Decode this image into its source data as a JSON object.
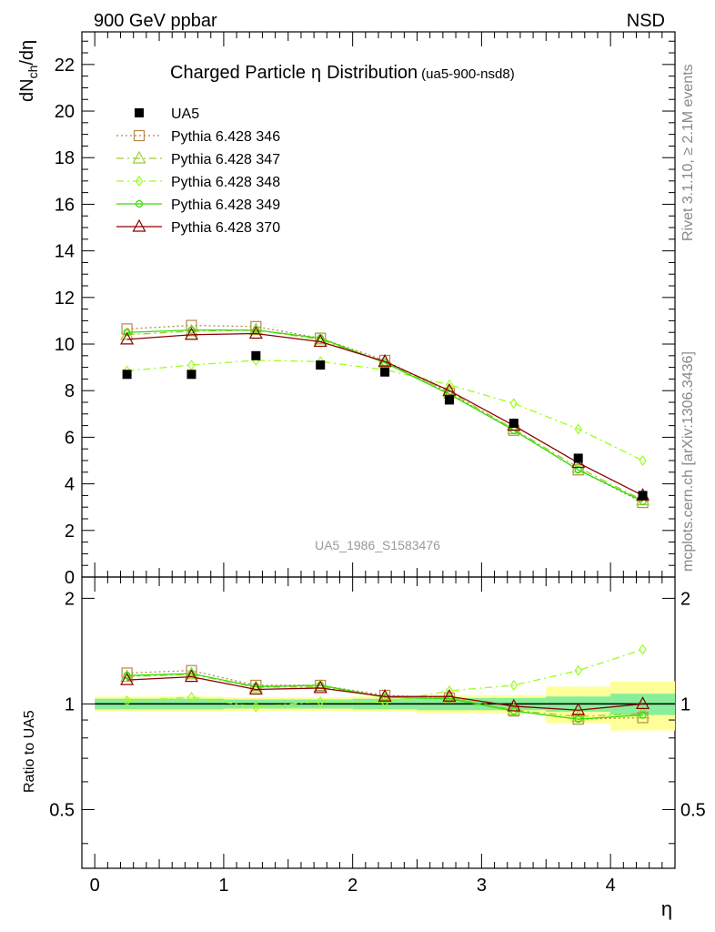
{
  "header": {
    "left": "900 GeV ppbar",
    "right": "NSD",
    "side_rivet": "Rivet 3.1.10, ≥ 2.1M events",
    "side_mcplots": "mcplots.cern.ch [arXiv:1306.3436]"
  },
  "chart_data": [
    {
      "type": "line",
      "title": "Charged Particle",
      "title_symbol": "η",
      "title_rest": "Distribution",
      "subtitle": "(ua5-900-nsd8)",
      "ylabel_main": "dN",
      "ylabel_sub": "ch",
      "ylabel_tail": "/dη",
      "watermark": "UA5_1986_S1583476",
      "xlim": [
        -0.1,
        4.5
      ],
      "ylim": [
        0,
        23.4
      ],
      "yticks": [
        "0",
        "2",
        "4",
        "6",
        "8",
        "10",
        "12",
        "14",
        "16",
        "18",
        "20",
        "22"
      ],
      "x": [
        0.25,
        0.75,
        1.25,
        1.75,
        2.25,
        2.75,
        3.25,
        3.75,
        4.25
      ],
      "data": {
        "name": "UA5",
        "color": "#000000",
        "values": [
          8.7,
          8.7,
          9.5,
          9.1,
          8.8,
          7.6,
          6.6,
          5.1,
          3.5
        ]
      },
      "series": [
        {
          "name": "Pythia 6.428 346",
          "color": "#b8864b",
          "dash": "2,3",
          "marker": "square",
          "values": [
            10.65,
            10.8,
            10.75,
            10.25,
            9.3,
            7.9,
            6.3,
            4.6,
            3.2
          ]
        },
        {
          "name": "Pythia 6.428 347",
          "color": "#9acd32",
          "dash": "8,4,2,4",
          "marker": "triangle",
          "values": [
            10.4,
            10.55,
            10.6,
            10.2,
            9.2,
            7.95,
            6.35,
            4.7,
            3.3
          ]
        },
        {
          "name": "Pythia 6.428 348",
          "color": "#9bff1a",
          "dash": "8,4,2,4",
          "marker": "diamond",
          "values": [
            8.85,
            9.1,
            9.3,
            9.25,
            8.9,
            8.25,
            7.45,
            6.35,
            5.0
          ]
        },
        {
          "name": "Pythia 6.428 349",
          "color": "#33dd00",
          "dash": "",
          "marker": "circle",
          "values": [
            10.5,
            10.6,
            10.6,
            10.25,
            9.2,
            7.85,
            6.3,
            4.6,
            3.25
          ]
        },
        {
          "name": "Pythia 6.428 370",
          "color": "#8b0000",
          "dash": "",
          "marker": "triangle",
          "values": [
            10.2,
            10.4,
            10.45,
            10.1,
            9.25,
            8.0,
            6.5,
            4.9,
            3.5
          ]
        }
      ]
    },
    {
      "type": "line",
      "ylabel": "Ratio to UA5",
      "xlabel": "η",
      "xlim": [
        -0.1,
        4.5
      ],
      "ylog": true,
      "ylim": [
        0.34,
        2.3
      ],
      "yticks": [
        "0.5",
        "1",
        "2"
      ],
      "xticks": [
        "0",
        "1",
        "2",
        "3",
        "4"
      ],
      "uncertainty_band": {
        "edges": [
          0,
          0.5,
          1,
          1.5,
          2,
          2.5,
          3,
          3.5,
          4,
          4.5
        ],
        "inner": [
          0.035,
          0.035,
          0.03,
          0.03,
          0.035,
          0.04,
          0.04,
          0.05,
          0.07
        ],
        "outer": [
          0.05,
          0.05,
          0.045,
          0.045,
          0.05,
          0.06,
          0.06,
          0.12,
          0.16
        ]
      },
      "series": [
        {
          "name": "Pythia 6.428 346",
          "values": [
            1.225,
            1.245,
            1.13,
            1.13,
            1.058,
            1.04,
            0.955,
            0.905,
            0.914
          ]
        },
        {
          "name": "Pythia 6.428 347",
          "values": [
            1.195,
            1.215,
            1.115,
            1.12,
            1.045,
            1.045,
            0.96,
            0.92,
            0.94
          ]
        },
        {
          "name": "Pythia 6.428 348",
          "values": [
            1.02,
            1.045,
            0.98,
            1.015,
            1.01,
            1.09,
            1.13,
            1.245,
            1.43
          ]
        },
        {
          "name": "Pythia 6.428 349",
          "values": [
            1.205,
            1.22,
            1.12,
            1.13,
            1.045,
            1.035,
            0.955,
            0.905,
            0.93
          ]
        },
        {
          "name": "Pythia 6.428 370",
          "values": [
            1.17,
            1.195,
            1.1,
            1.11,
            1.05,
            1.05,
            0.985,
            0.96,
            1.0
          ]
        }
      ]
    }
  ]
}
